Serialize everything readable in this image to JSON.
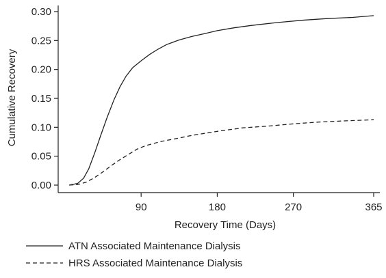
{
  "chart_data": {
    "type": "line",
    "title": "",
    "xlabel": "Recovery Time (Days)",
    "ylabel": "Cumulative Recovery",
    "xlim": [
      0,
      365
    ],
    "ylim": [
      0,
      0.3
    ],
    "x_ticks": [
      90,
      180,
      270,
      365
    ],
    "x_tick_labels": [
      "90",
      "180",
      "270",
      "365"
    ],
    "y_ticks": [
      0,
      0.05,
      0.1,
      0.15,
      0.2,
      0.25,
      0.3
    ],
    "y_tick_labels": [
      "0.00",
      "0.05",
      "0.10",
      "0.15",
      "0.20",
      "0.25",
      "0.30"
    ],
    "grid": false,
    "legend_position": "bottom",
    "series": [
      {
        "name": "ATN Associated Maintenance Dialysis",
        "line_style": "solid",
        "color": "#222222",
        "points": [
          [
            5,
            0
          ],
          [
            15,
            0.003
          ],
          [
            22,
            0.012
          ],
          [
            28,
            0.028
          ],
          [
            35,
            0.055
          ],
          [
            42,
            0.085
          ],
          [
            50,
            0.118
          ],
          [
            58,
            0.148
          ],
          [
            65,
            0.17
          ],
          [
            72,
            0.188
          ],
          [
            80,
            0.203
          ],
          [
            90,
            0.215
          ],
          [
            100,
            0.226
          ],
          [
            110,
            0.235
          ],
          [
            120,
            0.243
          ],
          [
            135,
            0.251
          ],
          [
            150,
            0.257
          ],
          [
            165,
            0.262
          ],
          [
            180,
            0.267
          ],
          [
            200,
            0.272
          ],
          [
            220,
            0.276
          ],
          [
            250,
            0.281
          ],
          [
            280,
            0.285
          ],
          [
            310,
            0.288
          ],
          [
            340,
            0.29
          ],
          [
            365,
            0.293
          ]
        ]
      },
      {
        "name": "HRS Associated Maintenance Dialysis",
        "line_style": "dashed",
        "color": "#222222",
        "points": [
          [
            5,
            0
          ],
          [
            15,
            0.001
          ],
          [
            25,
            0.005
          ],
          [
            35,
            0.013
          ],
          [
            45,
            0.023
          ],
          [
            55,
            0.034
          ],
          [
            65,
            0.044
          ],
          [
            75,
            0.053
          ],
          [
            85,
            0.062
          ],
          [
            95,
            0.068
          ],
          [
            105,
            0.072
          ],
          [
            115,
            0.076
          ],
          [
            130,
            0.08
          ],
          [
            150,
            0.086
          ],
          [
            180,
            0.093
          ],
          [
            210,
            0.099
          ],
          [
            240,
            0.102
          ],
          [
            270,
            0.106
          ],
          [
            300,
            0.109
          ],
          [
            330,
            0.111
          ],
          [
            365,
            0.113
          ]
        ]
      }
    ]
  }
}
